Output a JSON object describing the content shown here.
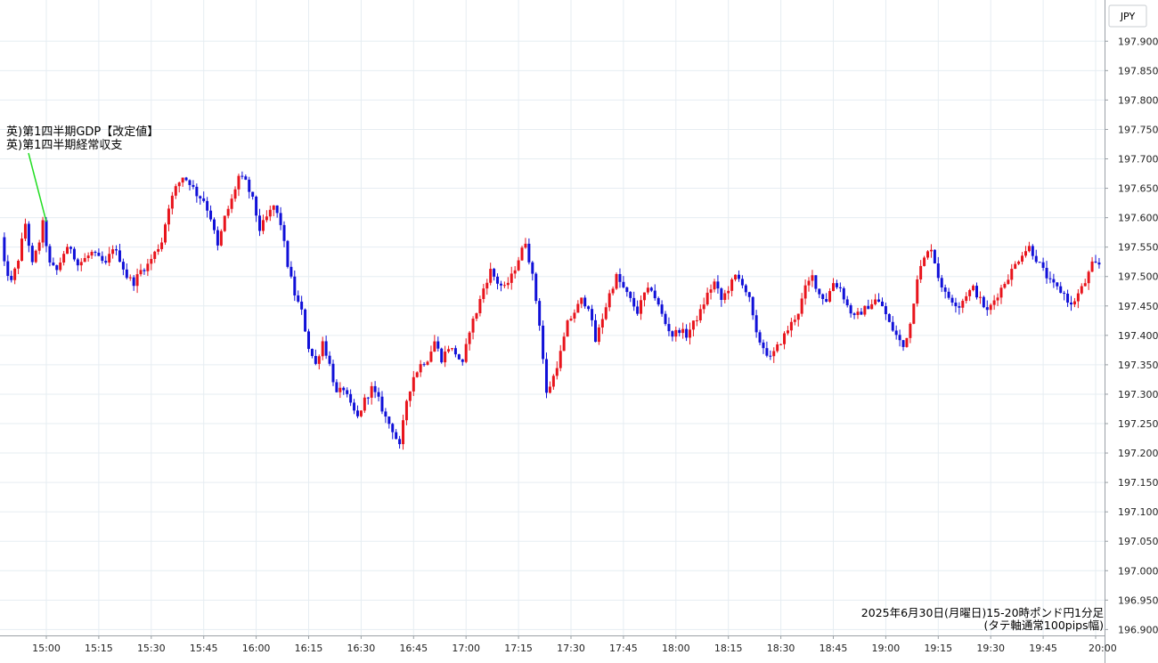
{
  "chart_data": {
    "type": "candlestick",
    "currency_label": "JPY",
    "y_ticks": [
      "197.900",
      "197.850",
      "197.800",
      "197.750",
      "197.700",
      "197.650",
      "197.600",
      "197.550",
      "197.500",
      "197.450",
      "197.400",
      "197.350",
      "197.300",
      "197.250",
      "197.200",
      "197.150",
      "197.100",
      "197.050",
      "197.000",
      "196.950",
      "196.900"
    ],
    "ylim": [
      196.89,
      197.97
    ],
    "x_ticks": [
      "15:00",
      "15:15",
      "15:30",
      "15:45",
      "16:00",
      "16:15",
      "16:30",
      "16:45",
      "17:00",
      "17:15",
      "17:30",
      "17:45",
      "18:00",
      "18:15",
      "18:30",
      "18:45",
      "19:00",
      "19:15",
      "19:30",
      "19:45",
      "20:00"
    ],
    "x_range_minutes": [
      -13,
      301
    ],
    "annotation": {
      "lines": [
        "英)第1四半期GDP【改定値】",
        "英)第1四半期経常収支"
      ],
      "minute": 0,
      "price": 197.59
    },
    "caption": {
      "line1": "2025年6月30日(月曜日)15-20時ポンド円1分足",
      "line2": "(タテ軸通常100pips幅)"
    },
    "colors": {
      "up": "#e8141c",
      "down": "#1010d8",
      "grid": "#e6edf2",
      "annotation_line": "#22dd22"
    },
    "anchors": [
      [
        -13,
        197.61
      ],
      [
        -11,
        197.52
      ],
      [
        -9,
        197.49
      ],
      [
        -7,
        197.53
      ],
      [
        -5,
        197.59
      ],
      [
        -3,
        197.52
      ],
      [
        -1,
        197.56
      ],
      [
        0,
        197.59
      ],
      [
        2,
        197.52
      ],
      [
        4,
        197.51
      ],
      [
        6,
        197.54
      ],
      [
        8,
        197.55
      ],
      [
        10,
        197.52
      ],
      [
        12,
        197.53
      ],
      [
        14,
        197.54
      ],
      [
        16,
        197.53
      ],
      [
        18,
        197.52
      ],
      [
        20,
        197.55
      ],
      [
        22,
        197.53
      ],
      [
        24,
        197.5
      ],
      [
        26,
        197.49
      ],
      [
        28,
        197.51
      ],
      [
        30,
        197.52
      ],
      [
        32,
        197.54
      ],
      [
        34,
        197.56
      ],
      [
        36,
        197.62
      ],
      [
        38,
        197.65
      ],
      [
        40,
        197.67
      ],
      [
        42,
        197.66
      ],
      [
        44,
        197.64
      ],
      [
        46,
        197.63
      ],
      [
        48,
        197.6
      ],
      [
        50,
        197.55
      ],
      [
        52,
        197.6
      ],
      [
        54,
        197.63
      ],
      [
        56,
        197.67
      ],
      [
        58,
        197.66
      ],
      [
        60,
        197.63
      ],
      [
        62,
        197.58
      ],
      [
        64,
        197.6
      ],
      [
        66,
        197.62
      ],
      [
        68,
        197.59
      ],
      [
        70,
        197.52
      ],
      [
        72,
        197.47
      ],
      [
        74,
        197.44
      ],
      [
        76,
        197.38
      ],
      [
        78,
        197.35
      ],
      [
        80,
        197.39
      ],
      [
        82,
        197.35
      ],
      [
        84,
        197.3
      ],
      [
        86,
        197.31
      ],
      [
        88,
        197.28
      ],
      [
        90,
        197.26
      ],
      [
        92,
        197.29
      ],
      [
        94,
        197.31
      ],
      [
        96,
        197.29
      ],
      [
        98,
        197.26
      ],
      [
        100,
        197.24
      ],
      [
        102,
        197.21
      ],
      [
        104,
        197.29
      ],
      [
        106,
        197.33
      ],
      [
        108,
        197.35
      ],
      [
        110,
        197.36
      ],
      [
        112,
        197.39
      ],
      [
        114,
        197.36
      ],
      [
        116,
        197.38
      ],
      [
        118,
        197.37
      ],
      [
        120,
        197.35
      ],
      [
        122,
        197.41
      ],
      [
        124,
        197.44
      ],
      [
        126,
        197.48
      ],
      [
        128,
        197.51
      ],
      [
        130,
        197.49
      ],
      [
        132,
        197.48
      ],
      [
        134,
        197.5
      ],
      [
        136,
        197.53
      ],
      [
        138,
        197.56
      ],
      [
        140,
        197.5
      ],
      [
        142,
        197.42
      ],
      [
        144,
        197.3
      ],
      [
        146,
        197.33
      ],
      [
        148,
        197.37
      ],
      [
        150,
        197.42
      ],
      [
        152,
        197.44
      ],
      [
        154,
        197.46
      ],
      [
        156,
        197.45
      ],
      [
        158,
        197.39
      ],
      [
        160,
        197.43
      ],
      [
        162,
        197.47
      ],
      [
        164,
        197.5
      ],
      [
        166,
        197.48
      ],
      [
        168,
        197.46
      ],
      [
        170,
        197.44
      ],
      [
        172,
        197.47
      ],
      [
        174,
        197.48
      ],
      [
        176,
        197.45
      ],
      [
        178,
        197.42
      ],
      [
        180,
        197.4
      ],
      [
        182,
        197.41
      ],
      [
        184,
        197.4
      ],
      [
        186,
        197.42
      ],
      [
        188,
        197.44
      ],
      [
        190,
        197.47
      ],
      [
        192,
        197.49
      ],
      [
        194,
        197.46
      ],
      [
        196,
        197.48
      ],
      [
        198,
        197.5
      ],
      [
        200,
        197.49
      ],
      [
        202,
        197.46
      ],
      [
        204,
        197.4
      ],
      [
        206,
        197.38
      ],
      [
        208,
        197.36
      ],
      [
        210,
        197.38
      ],
      [
        212,
        197.4
      ],
      [
        214,
        197.42
      ],
      [
        216,
        197.44
      ],
      [
        218,
        197.48
      ],
      [
        220,
        197.5
      ],
      [
        222,
        197.47
      ],
      [
        224,
        197.46
      ],
      [
        226,
        197.49
      ],
      [
        228,
        197.48
      ],
      [
        230,
        197.45
      ],
      [
        232,
        197.43
      ],
      [
        234,
        197.44
      ],
      [
        236,
        197.45
      ],
      [
        238,
        197.46
      ],
      [
        240,
        197.45
      ],
      [
        242,
        197.42
      ],
      [
        244,
        197.4
      ],
      [
        246,
        197.38
      ],
      [
        248,
        197.42
      ],
      [
        250,
        197.5
      ],
      [
        252,
        197.53
      ],
      [
        254,
        197.55
      ],
      [
        256,
        197.5
      ],
      [
        258,
        197.47
      ],
      [
        260,
        197.46
      ],
      [
        262,
        197.45
      ],
      [
        264,
        197.47
      ],
      [
        266,
        197.48
      ],
      [
        268,
        197.46
      ],
      [
        270,
        197.44
      ],
      [
        272,
        197.46
      ],
      [
        274,
        197.48
      ],
      [
        276,
        197.5
      ],
      [
        278,
        197.52
      ],
      [
        280,
        197.54
      ],
      [
        282,
        197.55
      ],
      [
        284,
        197.53
      ],
      [
        286,
        197.51
      ],
      [
        288,
        197.49
      ],
      [
        290,
        197.48
      ],
      [
        292,
        197.47
      ],
      [
        294,
        197.45
      ],
      [
        296,
        197.47
      ],
      [
        298,
        197.49
      ],
      [
        300,
        197.52
      ]
    ]
  }
}
